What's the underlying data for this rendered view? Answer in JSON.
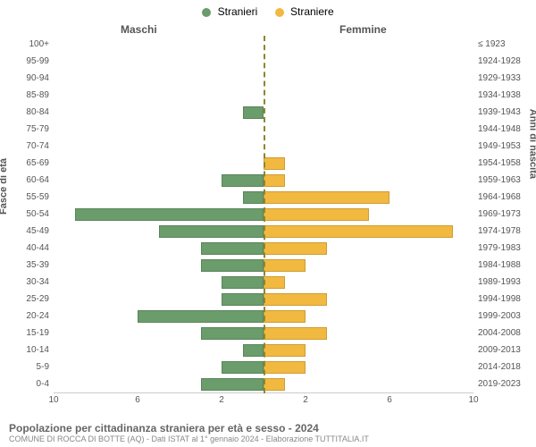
{
  "chart": {
    "type": "population-pyramid",
    "legend": {
      "male": {
        "label": "Stranieri",
        "color": "#6b9c6b"
      },
      "female": {
        "label": "Straniere",
        "color": "#f2b940"
      }
    },
    "header_male": "Maschi",
    "header_female": "Femmine",
    "axis_left_title": "Fasce di età",
    "axis_right_title": "Anni di nascita",
    "x_max": 10,
    "x_ticks": [
      10,
      6,
      2,
      2,
      6,
      10
    ],
    "rows": [
      {
        "age": "100+",
        "birth": "≤ 1923",
        "m": 0,
        "f": 0
      },
      {
        "age": "95-99",
        "birth": "1924-1928",
        "m": 0,
        "f": 0
      },
      {
        "age": "90-94",
        "birth": "1929-1933",
        "m": 0,
        "f": 0
      },
      {
        "age": "85-89",
        "birth": "1934-1938",
        "m": 0,
        "f": 0
      },
      {
        "age": "80-84",
        "birth": "1939-1943",
        "m": 1,
        "f": 0
      },
      {
        "age": "75-79",
        "birth": "1944-1948",
        "m": 0,
        "f": 0
      },
      {
        "age": "70-74",
        "birth": "1949-1953",
        "m": 0,
        "f": 0
      },
      {
        "age": "65-69",
        "birth": "1954-1958",
        "m": 0,
        "f": 1
      },
      {
        "age": "60-64",
        "birth": "1959-1963",
        "m": 2,
        "f": 1
      },
      {
        "age": "55-59",
        "birth": "1964-1968",
        "m": 1,
        "f": 6
      },
      {
        "age": "50-54",
        "birth": "1969-1973",
        "m": 9,
        "f": 5
      },
      {
        "age": "45-49",
        "birth": "1974-1978",
        "m": 5,
        "f": 9
      },
      {
        "age": "40-44",
        "birth": "1979-1983",
        "m": 3,
        "f": 3
      },
      {
        "age": "35-39",
        "birth": "1984-1988",
        "m": 3,
        "f": 2
      },
      {
        "age": "30-34",
        "birth": "1989-1993",
        "m": 2,
        "f": 1
      },
      {
        "age": "25-29",
        "birth": "1994-1998",
        "m": 2,
        "f": 3
      },
      {
        "age": "20-24",
        "birth": "1999-2003",
        "m": 6,
        "f": 2
      },
      {
        "age": "15-19",
        "birth": "2004-2008",
        "m": 3,
        "f": 3
      },
      {
        "age": "10-14",
        "birth": "2009-2013",
        "m": 1,
        "f": 2
      },
      {
        "age": "5-9",
        "birth": "2014-2018",
        "m": 2,
        "f": 2
      },
      {
        "age": "0-4",
        "birth": "2019-2023",
        "m": 3,
        "f": 1
      }
    ],
    "background_color": "#ffffff",
    "grid_color": "#cccccc",
    "center_line_color": "#888833",
    "bar_border": "rgba(0,0,0,0.15)",
    "label_fontsize": 10,
    "title_fontsize": 12
  },
  "footer": {
    "title": "Popolazione per cittadinanza straniera per età e sesso - 2024",
    "sub": "COMUNE DI ROCCA DI BOTTE (AQ) - Dati ISTAT al 1° gennaio 2024 - Elaborazione TUTTITALIA.IT"
  }
}
